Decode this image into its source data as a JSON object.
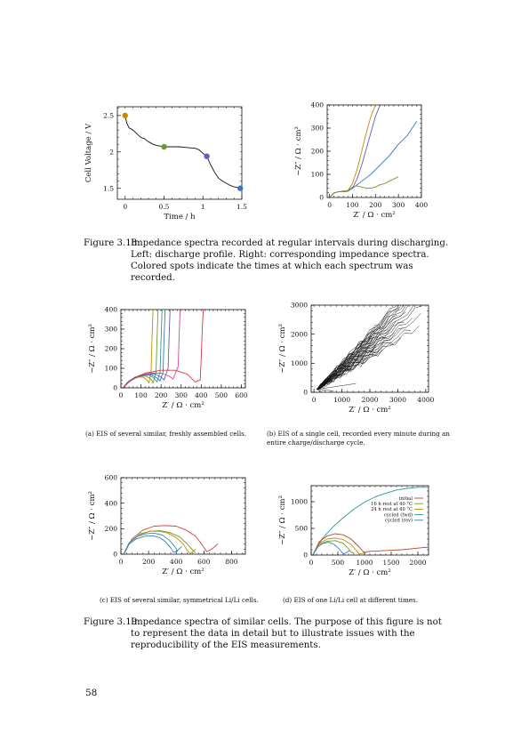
{
  "figure_3_18": {
    "caption_label": "Figure 3.18:",
    "caption_text": "Impedance spectra recorded at regular intervals during discharging. Left: discharge profile. Right: corresponding impedance spectra. Colored spots indicate the times at which each spectrum was recorded."
  },
  "figure_3_19": {
    "caption_label": "Figure 3.19:",
    "caption_text": "Impedance spectra of similar cells. The purpose of this figure is not to represent the data in detail but to illustrate issues with the reproducibility of the EIS measurements."
  },
  "subcaptions": {
    "a": "(a) EIS of several similar, freshly assembled cells.",
    "b": "(b) EIS of a single cell, recorded every minute during an entire charge/discharge cycle.",
    "c": "(c) EIS of several similar, symmetrical Li/Li cells.",
    "d": "(d) EIS of one Li/Li cell at different times."
  },
  "page_number": "58",
  "colors": {
    "orange": "#c48a00",
    "green": "#6d9a2c",
    "blue": "#3a77c4",
    "purple": "#5b5fbf",
    "red": "#d43a3a",
    "teal": "#2a9a9a",
    "black": "#111111",
    "pink": "#d24c9c",
    "brown": "#b24a2a"
  },
  "chart_data": [
    {
      "id": "discharge",
      "type": "line",
      "xlabel": "Time / h",
      "ylabel": "Cell Voltage / V",
      "xlim": [
        -0.1,
        1.5
      ],
      "ylim": [
        1.35,
        2.62
      ],
      "xticks": [
        0,
        0.5,
        1,
        1.5
      ],
      "xticklabels": [
        "0",
        "0.5",
        "1",
        "1.5"
      ],
      "yticks": [
        1.5,
        2,
        2.5
      ],
      "yticklabels": [
        "1.5",
        "2",
        "2.5"
      ],
      "series": [
        {
          "color": "#111111",
          "x": [
            0,
            0.02,
            0.05,
            0.1,
            0.15,
            0.2,
            0.25,
            0.3,
            0.35,
            0.4,
            0.45,
            0.5,
            0.6,
            0.7,
            0.8,
            0.9,
            0.95,
            1.0,
            1.05,
            1.1,
            1.15,
            1.2,
            1.25,
            1.3,
            1.35,
            1.4,
            1.45,
            1.48
          ],
          "y": [
            2.5,
            2.4,
            2.33,
            2.3,
            2.25,
            2.2,
            2.18,
            2.14,
            2.11,
            2.09,
            2.08,
            2.07,
            2.07,
            2.07,
            2.06,
            2.05,
            2.03,
            1.98,
            1.94,
            1.82,
            1.72,
            1.64,
            1.6,
            1.57,
            1.54,
            1.52,
            1.51,
            1.5
          ]
        }
      ],
      "markers": [
        {
          "x": 0,
          "y": 2.5,
          "color": "#c48a00"
        },
        {
          "x": 0.5,
          "y": 2.07,
          "color": "#6d9a2c"
        },
        {
          "x": 1.05,
          "y": 1.94,
          "color": "#5b5fbf"
        },
        {
          "x": 1.48,
          "y": 1.5,
          "color": "#3a77c4"
        }
      ]
    },
    {
      "id": "spectra-318",
      "type": "line",
      "xlabel": "Z′ / Ω · cm²",
      "ylabel": "−Z″ / Ω · cm²",
      "xlim": [
        -10,
        400
      ],
      "ylim": [
        0,
        400
      ],
      "xticks": [
        0,
        100,
        200,
        300,
        400
      ],
      "xticklabels": [
        "0",
        "100",
        "200",
        "300",
        "400"
      ],
      "yticks": [
        0,
        100,
        200,
        300,
        400
      ],
      "yticklabels": [
        "0",
        "100",
        "200",
        "300",
        "400"
      ],
      "series": [
        {
          "color": "#c48a00",
          "x": [
            0,
            20,
            40,
            60,
            80,
            100,
            120,
            140,
            160,
            180,
            200
          ],
          "y": [
            0,
            20,
            25,
            28,
            30,
            60,
            120,
            200,
            280,
            350,
            400
          ]
        },
        {
          "color": "#5b5fbf",
          "x": [
            0,
            20,
            40,
            60,
            80,
            100,
            120,
            140,
            160,
            180,
            200,
            220
          ],
          "y": [
            0,
            20,
            25,
            25,
            27,
            40,
            80,
            140,
            210,
            280,
            350,
            400
          ]
        },
        {
          "color": "#3a77c4",
          "x": [
            0,
            20,
            40,
            60,
            80,
            100,
            140,
            180,
            220,
            260,
            300,
            340,
            380
          ],
          "y": [
            0,
            20,
            25,
            25,
            28,
            40,
            70,
            100,
            140,
            180,
            230,
            270,
            330
          ]
        },
        {
          "color": "#6d9a2c",
          "x": [
            0,
            20,
            40,
            60,
            80,
            100,
            120,
            140,
            160,
            180,
            200,
            220,
            240,
            260,
            280,
            300
          ],
          "y": [
            0,
            20,
            25,
            25,
            30,
            45,
            50,
            45,
            40,
            40,
            45,
            55,
            60,
            70,
            80,
            90
          ]
        }
      ]
    },
    {
      "id": "a",
      "type": "line",
      "xlabel": "Z′ / Ω · cm²",
      "ylabel": "−Z″ / Ω · cm²",
      "xlim": [
        0,
        620
      ],
      "ylim": [
        0,
        400
      ],
      "xticks": [
        0,
        100,
        200,
        300,
        400,
        500,
        600
      ],
      "xticklabels": [
        "0",
        "100",
        "200",
        "300",
        "400",
        "500",
        "600"
      ],
      "yticks": [
        0,
        100,
        200,
        300,
        400
      ],
      "yticklabels": [
        "0",
        "100",
        "200",
        "300",
        "400"
      ],
      "series": [
        {
          "color": "#c48a00",
          "x": [
            10,
            30,
            60,
            90,
            110,
            130,
            140,
            150,
            155,
            160
          ],
          "y": [
            0,
            25,
            45,
            55,
            55,
            40,
            25,
            80,
            250,
            400
          ]
        },
        {
          "color": "#6d9a2c",
          "x": [
            10,
            35,
            70,
            100,
            125,
            150,
            160,
            175,
            180,
            185
          ],
          "y": [
            0,
            30,
            50,
            60,
            60,
            45,
            25,
            80,
            250,
            400
          ]
        },
        {
          "color": "#2a9a9a",
          "x": [
            10,
            35,
            70,
            110,
            140,
            165,
            180,
            195,
            200,
            205
          ],
          "y": [
            0,
            30,
            55,
            65,
            65,
            50,
            30,
            80,
            250,
            400
          ]
        },
        {
          "color": "#3a77c4",
          "x": [
            10,
            40,
            80,
            120,
            155,
            180,
            195,
            210,
            215,
            220
          ],
          "y": [
            0,
            30,
            55,
            65,
            65,
            50,
            35,
            80,
            250,
            400
          ]
        },
        {
          "color": "#5b5fbf",
          "x": [
            10,
            40,
            85,
            130,
            170,
            200,
            215,
            235,
            240,
            245
          ],
          "y": [
            0,
            35,
            60,
            70,
            70,
            55,
            40,
            100,
            260,
            400
          ]
        },
        {
          "color": "#d24c9c",
          "x": [
            10,
            45,
            95,
            150,
            200,
            240,
            260,
            285,
            290,
            295
          ],
          "y": [
            0,
            35,
            65,
            75,
            75,
            60,
            45,
            110,
            270,
            400
          ]
        },
        {
          "color": "#d43a3a",
          "x": [
            10,
            50,
            120,
            200,
            270,
            330,
            370,
            395,
            400,
            405,
            410
          ],
          "y": [
            0,
            40,
            75,
            90,
            90,
            70,
            30,
            40,
            150,
            300,
            400
          ]
        }
      ]
    },
    {
      "id": "b",
      "type": "line",
      "xlabel": "Z′ / Ω · cm²",
      "ylabel": "−Z″ / Ω · cm²",
      "xlim": [
        -100,
        4100
      ],
      "ylim": [
        0,
        3000
      ],
      "xticks": [
        0,
        1000,
        2000,
        3000,
        4000
      ],
      "xticklabels": [
        "0",
        "1000",
        "2000",
        "3000",
        "4000"
      ],
      "yticks": [
        0,
        1000,
        2000,
        3000
      ],
      "yticklabels": [
        "0",
        "1000",
        "2000",
        "3000"
      ],
      "bundle": {
        "color": "#111111",
        "count": 38,
        "x0": 100,
        "y0": 100,
        "min_slope": 0.55,
        "max_slope": 1.05,
        "x_min_end": 1800,
        "x_max_end": 4000
      }
    },
    {
      "id": "c",
      "type": "line",
      "xlabel": "Z′ / Ω · cm²",
      "ylabel": "−Z″ / Ω · cm²",
      "xlim": [
        0,
        900
      ],
      "ylim": [
        0,
        600
      ],
      "xticks": [
        0,
        200,
        400,
        600,
        800
      ],
      "xticklabels": [
        "0",
        "200",
        "400",
        "600",
        "800"
      ],
      "yticks": [
        0,
        200,
        400,
        600
      ],
      "yticklabels": [
        "0",
        "200",
        "400",
        "600"
      ],
      "series": [
        {
          "color": "#d43a3a",
          "x": [
            20,
            80,
            160,
            240,
            320,
            400,
            470,
            540,
            590,
            620,
            640,
            670,
            700
          ],
          "y": [
            0,
            120,
            190,
            220,
            225,
            220,
            190,
            140,
            70,
            20,
            30,
            50,
            80
          ]
        },
        {
          "color": "#6d9a2c",
          "x": [
            20,
            70,
            140,
            210,
            280,
            350,
            420,
            480,
            520,
            540
          ],
          "y": [
            0,
            100,
            160,
            180,
            185,
            170,
            140,
            80,
            30,
            10
          ]
        },
        {
          "color": "#c48a00",
          "x": [
            20,
            70,
            140,
            210,
            280,
            340,
            400,
            450,
            480,
            500,
            520,
            540
          ],
          "y": [
            0,
            100,
            155,
            180,
            180,
            165,
            130,
            80,
            30,
            5,
            20,
            40
          ]
        },
        {
          "color": "#2a9a9a",
          "x": [
            20,
            60,
            120,
            180,
            240,
            300,
            350,
            390,
            410
          ],
          "y": [
            0,
            90,
            140,
            160,
            165,
            150,
            110,
            60,
            20
          ]
        },
        {
          "color": "#3a77c4",
          "x": [
            20,
            60,
            110,
            170,
            230,
            280,
            320,
            360,
            380,
            400,
            420,
            440
          ],
          "y": [
            0,
            80,
            120,
            140,
            145,
            130,
            100,
            50,
            15,
            20,
            40,
            60
          ]
        }
      ]
    },
    {
      "id": "d",
      "type": "line",
      "xlabel": "Z′ / Ω · cm²",
      "ylabel": "−Z″ / Ω · cm²",
      "xlim": [
        0,
        2200
      ],
      "ylim": [
        0,
        1300
      ],
      "xticks": [
        0,
        500,
        1000,
        1500,
        2000
      ],
      "xticklabels": [
        "0",
        "500",
        "1000",
        "1500",
        "2000"
      ],
      "yticks": [
        0,
        500,
        1000
      ],
      "yticklabels": [
        "0",
        "500",
        "1000"
      ],
      "legend": [
        {
          "label": "initial",
          "color": "#b24a2a"
        },
        {
          "label": "16 h rest at 40 °C",
          "color": "#6d9a2c"
        },
        {
          "label": "24 h rest at 40 °C",
          "color": "#c48a00"
        },
        {
          "label": "cycled (fwd)",
          "color": "#2a9a9a"
        },
        {
          "label": "cycled (rev)",
          "color": "#3a77c4"
        }
      ],
      "series": [
        {
          "color": "#2a9a9a",
          "x": [
            30,
            200,
            400,
            600,
            800,
            1000,
            1200,
            1400,
            1600,
            1800,
            2000,
            2200
          ],
          "y": [
            0,
            300,
            520,
            700,
            860,
            990,
            1090,
            1160,
            1220,
            1250,
            1270,
            1270
          ]
        },
        {
          "color": "#b24a2a",
          "x": [
            30,
            150,
            300,
            450,
            600,
            750,
            900,
            1000,
            1050,
            1100,
            1300,
            1500,
            1700,
            1900,
            2100,
            2200
          ],
          "y": [
            0,
            250,
            360,
            400,
            380,
            300,
            150,
            40,
            60,
            70,
            80,
            90,
            100,
            120,
            140,
            150
          ]
        },
        {
          "color": "#c48a00",
          "x": [
            30,
            150,
            300,
            450,
            600,
            750,
            850,
            900,
            950,
            1000
          ],
          "y": [
            0,
            220,
            300,
            320,
            290,
            200,
            80,
            20,
            30,
            40
          ]
        },
        {
          "color": "#6d9a2c",
          "x": [
            30,
            150,
            300,
            450,
            600,
            700,
            750,
            800
          ],
          "y": [
            0,
            200,
            260,
            270,
            220,
            120,
            50,
            40
          ]
        },
        {
          "color": "#3a77c4",
          "x": [
            30,
            120,
            220,
            330,
            430,
            520,
            580,
            620,
            650,
            680,
            720
          ],
          "y": [
            0,
            150,
            220,
            240,
            200,
            120,
            50,
            20,
            40,
            60,
            80
          ]
        }
      ]
    }
  ]
}
